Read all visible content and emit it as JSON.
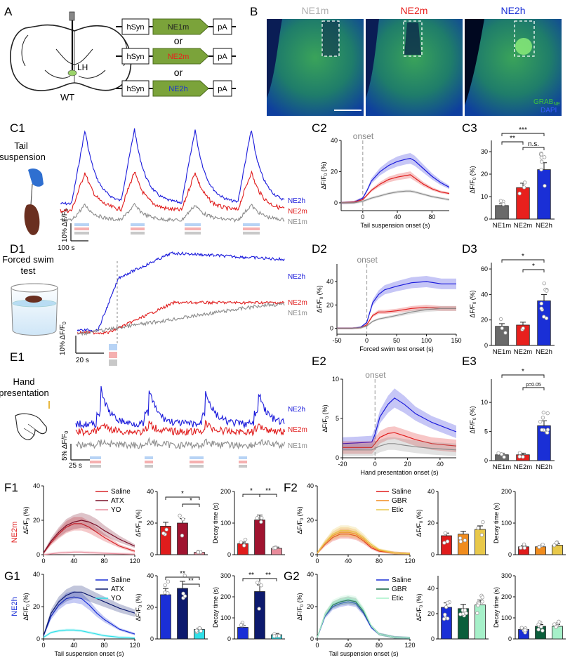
{
  "panel_letters": {
    "A": "A",
    "B": "B",
    "C1": "C1",
    "C2": "C2",
    "C3": "C3",
    "D1": "D1",
    "D2": "D2",
    "D3": "D3",
    "E1": "E1",
    "E2": "E2",
    "E3": "E3",
    "F1": "F1",
    "F2": "F2",
    "G1": "G1",
    "G2": "G2"
  },
  "panel_a": {
    "brain_region": "LH",
    "mouse": "WT",
    "constructs": [
      {
        "promoter": "hSyn",
        "sensor": "NE1m",
        "polyA": "pA",
        "color": "#444444"
      },
      {
        "promoter": "hSyn",
        "sensor": "NE2m",
        "polyA": "pA",
        "color": "#e8201d"
      },
      {
        "promoter": "hSyn",
        "sensor": "NE2h",
        "polyA": "pA",
        "color": "#1a2fd6"
      }
    ],
    "or1": "or",
    "or2": "or"
  },
  "panel_b": {
    "titles": [
      {
        "label": "NE1m",
        "color": "#b0b0b0"
      },
      {
        "label": "NE2m",
        "color": "#e8201d"
      },
      {
        "label": "NE2h",
        "color": "#1a2fd6"
      }
    ],
    "legend_grab": "GRAB",
    "legend_grab_sub": "NE",
    "legend_dapi": "DAPI"
  },
  "colors": {
    "ne2h": "#1a1adb",
    "ne2m": "#e01c1c",
    "ne1m": "#8c8c8c"
  },
  "trace_labels": {
    "ne2h": "NE2h",
    "ne2m": "NE2m",
    "ne1m": "NE1m"
  },
  "c1": {
    "title_line1": "Tail",
    "title_line2": "suspension",
    "scale_y": "10% ΔF/F",
    "scale_y_sub": "0",
    "scale_x": "100 s"
  },
  "d1": {
    "title_line1": "Forced swim",
    "title_line2": "test",
    "scale_y": "10% ΔF/F",
    "scale_y_sub": "0",
    "scale_x": "20 s"
  },
  "e1": {
    "title_line1": "Hand",
    "title_line2": "presentation",
    "scale_y": "5% ΔF/F",
    "scale_y_sub": "0",
    "scale_x": "25 s"
  },
  "onset_label": "onset",
  "f_row_label": "NE2m",
  "g_row_label": "NE2h",
  "chart_data": [
    {
      "id": "C2",
      "type": "line",
      "xlabel": "Tail suspension onset (s)",
      "ylabel": "ΔF/F0 (%)",
      "xlim": [
        -25,
        100
      ],
      "ylim": [
        -5,
        40
      ],
      "xticks": [
        0,
        40,
        80
      ],
      "yticks": [
        0,
        20,
        40
      ],
      "onset": 0,
      "series": [
        {
          "name": "NE2h",
          "x": [
            -25,
            -10,
            0,
            5,
            10,
            20,
            30,
            40,
            50,
            55,
            60,
            70,
            80,
            90,
            100
          ],
          "y": [
            0,
            0.5,
            3,
            8,
            14,
            20,
            24,
            26.5,
            28,
            28.5,
            27,
            22,
            17,
            13,
            10
          ]
        },
        {
          "name": "NE2m",
          "x": [
            -25,
            -10,
            0,
            5,
            10,
            20,
            30,
            40,
            50,
            55,
            60,
            70,
            80,
            90,
            100
          ],
          "y": [
            0,
            0.5,
            2,
            5,
            8,
            12,
            15,
            16.5,
            17.5,
            18,
            16,
            12,
            9,
            7,
            6
          ]
        },
        {
          "name": "NE1m",
          "x": [
            -25,
            -10,
            0,
            5,
            10,
            20,
            30,
            40,
            50,
            55,
            60,
            70,
            80,
            90,
            100
          ],
          "y": [
            0,
            0,
            1,
            2,
            3,
            4.5,
            6,
            7,
            7.5,
            7.5,
            7,
            5.5,
            4,
            3,
            2
          ]
        }
      ]
    },
    {
      "id": "C3",
      "type": "bar",
      "categories": [
        "NE1m",
        "NE2m",
        "NE2h"
      ],
      "values": [
        6,
        14,
        22
      ],
      "ylim": [
        0,
        35
      ],
      "yticks": [
        0,
        10,
        20,
        30
      ],
      "ylabel": "ΔF/F0 (%)",
      "significance": [
        "**",
        "***",
        "n.s."
      ]
    },
    {
      "id": "D2",
      "type": "line",
      "xlabel": "Forced swim test onset (s)",
      "ylabel": "ΔF/F0 (%)",
      "xlim": [
        -50,
        150
      ],
      "ylim": [
        -5,
        55
      ],
      "xticks": [
        -50,
        0,
        50,
        100,
        150
      ],
      "yticks": [
        0,
        20,
        40
      ],
      "onset": 0,
      "series": [
        {
          "name": "NE2h",
          "x": [
            -50,
            -25,
            -10,
            0,
            10,
            20,
            30,
            50,
            75,
            100,
            125,
            150
          ],
          "y": [
            0,
            0,
            1,
            5,
            22,
            29,
            33,
            36,
            39,
            40,
            38,
            38
          ]
        },
        {
          "name": "NE2m",
          "x": [
            -50,
            -25,
            -10,
            0,
            10,
            20,
            30,
            50,
            75,
            100,
            125,
            150
          ],
          "y": [
            0,
            0,
            0.5,
            3,
            11,
            14,
            14,
            15,
            17,
            18,
            17,
            17
          ]
        },
        {
          "name": "NE1m",
          "x": [
            -50,
            -25,
            -10,
            0,
            10,
            20,
            30,
            50,
            75,
            100,
            125,
            150
          ],
          "y": [
            0,
            0,
            0.5,
            2,
            6,
            8,
            9,
            11,
            14,
            16,
            17,
            17
          ]
        }
      ]
    },
    {
      "id": "D3",
      "type": "bar",
      "categories": [
        "NE1m",
        "NE2m",
        "NE2h"
      ],
      "values": [
        15,
        16,
        35
      ],
      "ylim": [
        0,
        65
      ],
      "yticks": [
        0,
        20,
        40,
        60
      ],
      "ylabel": "ΔF/F0 (%)",
      "significance": [
        "*",
        "*"
      ]
    },
    {
      "id": "E2",
      "type": "line",
      "xlabel": "Hand presentation onset (s)",
      "ylabel": "ΔF/F0 (%)",
      "xlim": [
        -20,
        50
      ],
      "ylim": [
        0,
        10
      ],
      "xticks": [
        -20,
        0,
        20,
        40
      ],
      "yticks": [
        0,
        5,
        10
      ],
      "onset": 0,
      "series": [
        {
          "name": "NE2h",
          "x": [
            -20,
            -10,
            -2,
            0,
            3,
            8,
            12,
            18,
            25,
            35,
            50
          ],
          "y": [
            1.8,
            1.9,
            2,
            3,
            5.2,
            6.8,
            7.6,
            6.8,
            5.6,
            4.5,
            3.3
          ]
        },
        {
          "name": "NE2m",
          "x": [
            -20,
            -10,
            -2,
            0,
            3,
            8,
            12,
            18,
            25,
            35,
            50
          ],
          "y": [
            1.3,
            1.3,
            1.3,
            1.8,
            2.6,
            3.1,
            3.2,
            2.8,
            2.3,
            1.8,
            1.5
          ]
        },
        {
          "name": "NE1m",
          "x": [
            -20,
            -10,
            -2,
            0,
            3,
            8,
            12,
            18,
            25,
            35,
            50
          ],
          "y": [
            1,
            1,
            1,
            1.2,
            1.5,
            1.8,
            1.8,
            1.6,
            1.4,
            1.2,
            1
          ]
        }
      ]
    },
    {
      "id": "E3",
      "type": "bar",
      "categories": [
        "NE1m",
        "NE2m",
        "NE2h"
      ],
      "values": [
        1,
        1,
        6
      ],
      "ylim": [
        0,
        14
      ],
      "yticks": [
        0,
        5,
        10
      ],
      "ylabel": "ΔF/F0 (%)",
      "significance": [
        "*",
        "p=0.05"
      ]
    },
    {
      "id": "F1",
      "type": "line",
      "xlabel": "",
      "ylabel": "ΔF/F0 (%)",
      "xlim": [
        0,
        120
      ],
      "ylim": [
        0,
        40
      ],
      "xticks": [
        0,
        40,
        80,
        120
      ],
      "yticks": [
        0,
        20,
        40
      ],
      "series": [
        {
          "name": "Saline",
          "x": [
            0,
            10,
            20,
            30,
            40,
            50,
            60,
            70,
            80,
            100,
            120
          ],
          "y": [
            1,
            7,
            12,
            16,
            18,
            18,
            16,
            13,
            10,
            5,
            2
          ]
        },
        {
          "name": "ATX",
          "x": [
            0,
            10,
            20,
            30,
            40,
            50,
            60,
            70,
            80,
            100,
            120
          ],
          "y": [
            1,
            8,
            13,
            17,
            19,
            20,
            19,
            17,
            14,
            9,
            5
          ]
        },
        {
          "name": "YO",
          "x": [
            0,
            10,
            20,
            30,
            40,
            50,
            60,
            70,
            80,
            100,
            120
          ],
          "y": [
            0,
            0.5,
            1,
            1.2,
            1.5,
            1.5,
            1.2,
            1,
            0.8,
            0.5,
            0.3
          ]
        }
      ]
    },
    {
      "id": "F1-bar-amp",
      "type": "bar",
      "categories": [
        "Saline",
        "ATX",
        "YO"
      ],
      "values": [
        18,
        20,
        1.5
      ],
      "ylim": [
        0,
        40
      ],
      "yticks": [
        0,
        20,
        40
      ],
      "ylabel": "ΔF/F0 (%)",
      "significance": [
        "*",
        "*"
      ]
    },
    {
      "id": "F1-bar-decay",
      "type": "bar",
      "categories": [
        "Saline",
        "ATX",
        "YO"
      ],
      "values": [
        35,
        110,
        20
      ],
      "ylim": [
        0,
        200
      ],
      "yticks": [
        0,
        100,
        200
      ],
      "ylabel": "Decay time (s)",
      "significance": [
        "*",
        "**"
      ]
    },
    {
      "id": "F2",
      "type": "line",
      "xlabel": "",
      "ylabel": "ΔF/F0 (%)",
      "xlim": [
        0,
        120
      ],
      "ylim": [
        0,
        40
      ],
      "xticks": [
        0,
        40,
        80,
        120
      ],
      "yticks": [
        0,
        20,
        40
      ],
      "series": [
        {
          "name": "Saline",
          "x": [
            0,
            10,
            20,
            30,
            40,
            50,
            60,
            70,
            80,
            100,
            120
          ],
          "y": [
            1,
            6,
            10,
            12,
            12,
            11,
            8,
            4,
            2,
            1,
            0.5
          ]
        },
        {
          "name": "GBR",
          "x": [
            0,
            10,
            20,
            30,
            40,
            50,
            60,
            70,
            80,
            100,
            120
          ],
          "y": [
            1,
            7,
            11,
            13,
            13,
            12,
            9,
            5,
            2.5,
            1,
            0.5
          ]
        },
        {
          "name": "Etic",
          "x": [
            0,
            10,
            20,
            30,
            40,
            50,
            60,
            70,
            80,
            100,
            120
          ],
          "y": [
            1,
            7,
            12,
            14,
            14,
            13,
            10,
            6,
            3,
            1,
            0.5
          ]
        }
      ]
    },
    {
      "id": "F2-bar-amp",
      "type": "bar",
      "categories": [
        "Saline",
        "GBR",
        "Etic"
      ],
      "values": [
        12,
        13,
        16
      ],
      "ylim": [
        0,
        40
      ],
      "yticks": [
        0,
        20,
        40
      ],
      "ylabel": "ΔF/F0 (%)",
      "significance": []
    },
    {
      "id": "F2-bar-decay",
      "type": "bar",
      "categories": [
        "Saline",
        "GBR",
        "Etic"
      ],
      "values": [
        25,
        25,
        30
      ],
      "ylim": [
        0,
        200
      ],
      "yticks": [
        0,
        100,
        200
      ],
      "ylabel": "Decay time (s)",
      "significance": []
    },
    {
      "id": "G1",
      "type": "line",
      "xlabel": "Tail suspension onset (s)",
      "ylabel": "ΔF/F0 (%)",
      "xlim": [
        0,
        120
      ],
      "ylim": [
        0,
        40
      ],
      "xticks": [
        0,
        40,
        80,
        120
      ],
      "yticks": [
        0,
        20,
        40
      ],
      "series": [
        {
          "name": "Saline",
          "x": [
            0,
            10,
            20,
            30,
            40,
            50,
            60,
            70,
            80,
            100,
            120
          ],
          "y": [
            2,
            14,
            21,
            25,
            26,
            25,
            21,
            16,
            12,
            6,
            3
          ]
        },
        {
          "name": "ATX",
          "x": [
            0,
            10,
            20,
            30,
            40,
            50,
            60,
            70,
            80,
            100,
            120
          ],
          "y": [
            2,
            16,
            23,
            27,
            29,
            29,
            27,
            25,
            23,
            19,
            16
          ]
        },
        {
          "name": "YO",
          "x": [
            0,
            10,
            20,
            30,
            40,
            50,
            60,
            70,
            80,
            100,
            120
          ],
          "y": [
            1,
            4,
            5,
            5.5,
            5.5,
            5,
            4,
            3,
            2,
            1,
            0.5
          ]
        }
      ]
    },
    {
      "id": "G1-bar-amp",
      "type": "bar",
      "categories": [
        "Saline",
        "ATX",
        "YO"
      ],
      "values": [
        28,
        32,
        6
      ],
      "ylim": [
        0,
        40
      ],
      "yticks": [
        0,
        20,
        40
      ],
      "ylabel": "ΔF/F0 (%)",
      "significance": [
        "**",
        "**"
      ]
    },
    {
      "id": "G1-bar-decay",
      "type": "bar",
      "categories": [
        "Saline",
        "ATX",
        "YO"
      ],
      "values": [
        55,
        225,
        20
      ],
      "ylim": [
        0,
        300
      ],
      "yticks": [
        0,
        100,
        200,
        300
      ],
      "ylabel": "Decay time (s)",
      "significance": [
        "**",
        "**"
      ]
    },
    {
      "id": "G2",
      "type": "line",
      "xlabel": "Tail suspension onset (s)",
      "ylabel": "ΔF/F0 (%)",
      "xlim": [
        0,
        120
      ],
      "ylim": [
        0,
        40
      ],
      "xticks": [
        0,
        40,
        80,
        120
      ],
      "yticks": [
        0,
        20,
        40
      ],
      "series": [
        {
          "name": "Saline",
          "x": [
            0,
            10,
            20,
            30,
            40,
            50,
            60,
            70,
            80,
            100,
            120
          ],
          "y": [
            1,
            14,
            20,
            22,
            23,
            22,
            16,
            7,
            3,
            1,
            0.5
          ]
        },
        {
          "name": "GBR",
          "x": [
            0,
            10,
            20,
            30,
            40,
            50,
            60,
            70,
            80,
            100,
            120
          ],
          "y": [
            1,
            15,
            21,
            23,
            24,
            23,
            17,
            8,
            3,
            1,
            0.5
          ]
        },
        {
          "name": "Etic",
          "x": [
            0,
            10,
            20,
            30,
            40,
            50,
            60,
            70,
            80,
            100,
            120
          ],
          "y": [
            1,
            15,
            22,
            24,
            25,
            24,
            18,
            8,
            3,
            1,
            0.5
          ]
        }
      ]
    },
    {
      "id": "G2-bar-amp",
      "type": "bar",
      "categories": [
        "Saline",
        "GBR",
        "Etic"
      ],
      "values": [
        25,
        24,
        27
      ],
      "ylim": [
        0,
        50
      ],
      "yticks": [
        0,
        20,
        40
      ],
      "ylabel": "ΔF/F0 (%)",
      "significance": []
    },
    {
      "id": "G2-bar-decay",
      "type": "bar",
      "categories": [
        "Saline",
        "GBR",
        "Etic"
      ],
      "values": [
        45,
        60,
        60
      ],
      "ylim": [
        0,
        300
      ],
      "yticks": [
        0,
        100,
        200,
        300
      ],
      "ylabel": "Decay time (s)",
      "significance": []
    }
  ]
}
